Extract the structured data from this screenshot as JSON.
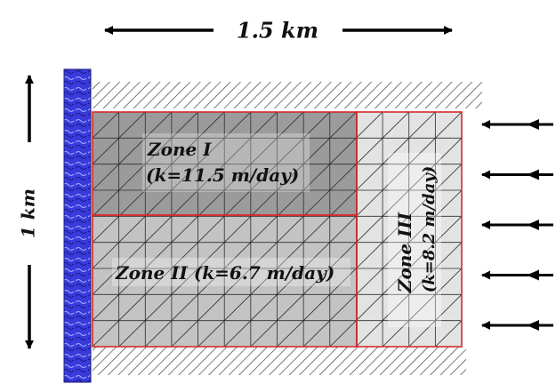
{
  "dimensions": {
    "width_label": "1.5 km",
    "height_label": "1 km"
  },
  "zones": [
    {
      "name": "Zone I",
      "k_label": "(k=11.5 m/day)",
      "fill": "#9b9b9b"
    },
    {
      "name": "Zone II",
      "k_label": "(k=6.7 m/day)",
      "full_label": "Zone II (k=6.7 m/day)",
      "fill": "#c3c3c3"
    },
    {
      "name": "Zone III",
      "k_label": "(k=8.2 m/day)",
      "fill": "#e3e3e3"
    }
  ],
  "colors": {
    "river": "#3a3adb",
    "zone_border": "#d42a2a",
    "mesh_line": "#2c2c2c",
    "text": "#111111"
  },
  "inflow_arrow_count": 5
}
